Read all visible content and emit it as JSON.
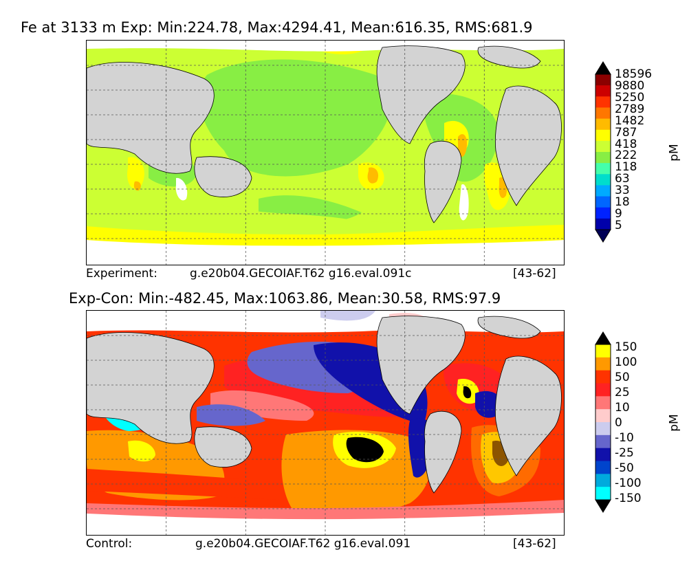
{
  "panels": [
    {
      "title": "Fe at 3133 m Exp: Min:224.78, Max:4294.41, Mean:616.35, RMS:681.9",
      "footer_left": "Experiment:",
      "footer_mid": "g.e20b04.GECOIAF.T62 g16.eval.091c",
      "footer_right": "[43-62]",
      "colorbar": {
        "unit": "pM",
        "ticks": [
          "18596",
          "9880",
          "5250",
          "2789",
          "1482",
          "787",
          "418",
          "222",
          "118",
          "63",
          "33",
          "18",
          "9",
          "5"
        ],
        "colors": [
          "#000000",
          "#8b0000",
          "#cc0000",
          "#ff3300",
          "#ff7700",
          "#ffbb00",
          "#ffff00",
          "#ccff33",
          "#88ee44",
          "#44ffaa",
          "#00ddcc",
          "#00aaff",
          "#0066ff",
          "#0022ff",
          "#0000aa",
          "#000055"
        ]
      }
    },
    {
      "title": "Exp-Con: Min:-482.45, Max:1063.86, Mean:30.58, RMS:97.9",
      "footer_left": "Control:",
      "footer_mid": "g.e20b04.GECOIAF.T62 g16.eval.091",
      "footer_right": "[43-62]",
      "colorbar": {
        "unit": "pM",
        "ticks": [
          "150",
          "100",
          "50",
          "25",
          "10",
          "0",
          "-10",
          "-25",
          "-50",
          "-100",
          "-150"
        ],
        "colors": [
          "#000000",
          "#ffff00",
          "#ff9900",
          "#ff3300",
          "#ff2222",
          "#ff7777",
          "#ffcccc",
          "#ccccee",
          "#6666cc",
          "#1111aa",
          "#0044cc",
          "#00aadd",
          "#00ffff",
          "#000000"
        ]
      }
    }
  ]
}
